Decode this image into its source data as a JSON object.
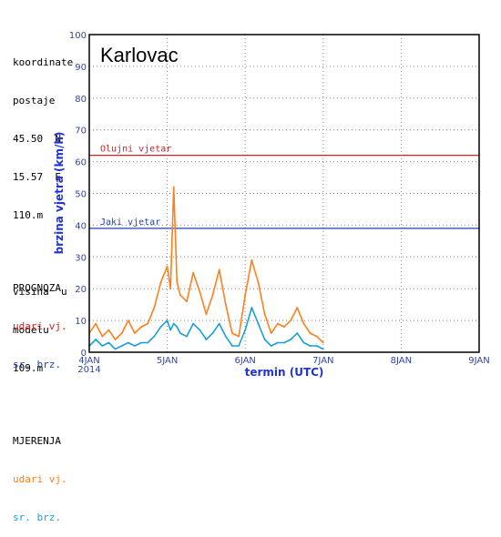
{
  "station_info": {
    "lines": [
      "koordinate",
      "postaje",
      "45.50  N",
      "15.57  E",
      "110.m",
      "",
      "visina  u",
      "modelu",
      "109.m"
    ]
  },
  "legend": {
    "prognoza_title": "PROGNOZA",
    "prognoza_gust": "udari vj.",
    "prognoza_mean": "sr. brz.",
    "mjerenja_title": "MJERENJA",
    "mjerenja_gust": "udari vj.",
    "mjerenja_mean": "sr. brz."
  },
  "colors": {
    "storm_line": "#cc2222",
    "strong_line": "#2244aa",
    "measured_gust": "#ff7f1a",
    "measured_mean": "#1a9fdc",
    "grid": "#888888",
    "tick_text": "#3344aa"
  },
  "chart_data": {
    "type": "line",
    "title": "Karlovac",
    "xlabel": "termin (UTC)",
    "ylabel": "brzina vjetra (km/h)",
    "xlim": [
      "2014-01-04 00:00",
      "2014-01-09 00:00"
    ],
    "ylim": [
      0,
      100
    ],
    "yticks": [
      0,
      10,
      20,
      30,
      40,
      50,
      60,
      70,
      80,
      90,
      100
    ],
    "xticks": [
      "4JAN",
      "5JAN",
      "6JAN",
      "7JAN",
      "8JAN",
      "9JAN"
    ],
    "xtick_year": "2014",
    "grid": true,
    "thresholds": [
      {
        "label": "Olujni vjetar",
        "value": 62
      },
      {
        "label": "Jaki vjetar",
        "value": 39
      }
    ],
    "series": [
      {
        "name": "MJERENJA udari vj.",
        "x": [
          "2014-01-04 00:00",
          "2014-01-04 02:00",
          "2014-01-04 04:00",
          "2014-01-04 06:00",
          "2014-01-04 08:00",
          "2014-01-04 10:00",
          "2014-01-04 12:00",
          "2014-01-04 14:00",
          "2014-01-04 16:00",
          "2014-01-04 18:00",
          "2014-01-04 20:00",
          "2014-01-04 22:00",
          "2014-01-05 00:00",
          "2014-01-05 01:00",
          "2014-01-05 02:00",
          "2014-01-05 03:00",
          "2014-01-05 04:00",
          "2014-01-05 06:00",
          "2014-01-05 08:00",
          "2014-01-05 10:00",
          "2014-01-05 12:00",
          "2014-01-05 14:00",
          "2014-01-05 16:00",
          "2014-01-05 18:00",
          "2014-01-05 20:00",
          "2014-01-05 22:00",
          "2014-01-06 00:00",
          "2014-01-06 02:00",
          "2014-01-06 04:00",
          "2014-01-06 06:00",
          "2014-01-06 08:00",
          "2014-01-06 10:00",
          "2014-01-06 12:00",
          "2014-01-06 14:00",
          "2014-01-06 16:00",
          "2014-01-06 18:00",
          "2014-01-06 20:00",
          "2014-01-06 22:00",
          "2014-01-07 00:00"
        ],
        "values": [
          6,
          9,
          5,
          7,
          4,
          6,
          10,
          6,
          8,
          9,
          14,
          22,
          27,
          20,
          52,
          22,
          18,
          16,
          25,
          19,
          12,
          18,
          26,
          15,
          6,
          5,
          18,
          29,
          22,
          12,
          6,
          9,
          8,
          10,
          14,
          9,
          6,
          5,
          3
        ]
      },
      {
        "name": "MJERENJA sr. brz.",
        "x": [
          "2014-01-04 00:00",
          "2014-01-04 02:00",
          "2014-01-04 04:00",
          "2014-01-04 06:00",
          "2014-01-04 08:00",
          "2014-01-04 10:00",
          "2014-01-04 12:00",
          "2014-01-04 14:00",
          "2014-01-04 16:00",
          "2014-01-04 18:00",
          "2014-01-04 20:00",
          "2014-01-04 22:00",
          "2014-01-05 00:00",
          "2014-01-05 01:00",
          "2014-01-05 02:00",
          "2014-01-05 03:00",
          "2014-01-05 04:00",
          "2014-01-05 06:00",
          "2014-01-05 08:00",
          "2014-01-05 10:00",
          "2014-01-05 12:00",
          "2014-01-05 14:00",
          "2014-01-05 16:00",
          "2014-01-05 18:00",
          "2014-01-05 20:00",
          "2014-01-05 22:00",
          "2014-01-06 00:00",
          "2014-01-06 02:00",
          "2014-01-06 04:00",
          "2014-01-06 06:00",
          "2014-01-06 08:00",
          "2014-01-06 10:00",
          "2014-01-06 12:00",
          "2014-01-06 14:00",
          "2014-01-06 16:00",
          "2014-01-06 18:00",
          "2014-01-06 20:00",
          "2014-01-06 22:00",
          "2014-01-07 00:00"
        ],
        "values": [
          2,
          4,
          2,
          3,
          1,
          2,
          3,
          2,
          3,
          3,
          5,
          8,
          10,
          7,
          9,
          8,
          6,
          5,
          9,
          7,
          4,
          6,
          9,
          5,
          2,
          2,
          7,
          14,
          9,
          4,
          2,
          3,
          3,
          4,
          6,
          3,
          2,
          2,
          1
        ]
      }
    ]
  }
}
